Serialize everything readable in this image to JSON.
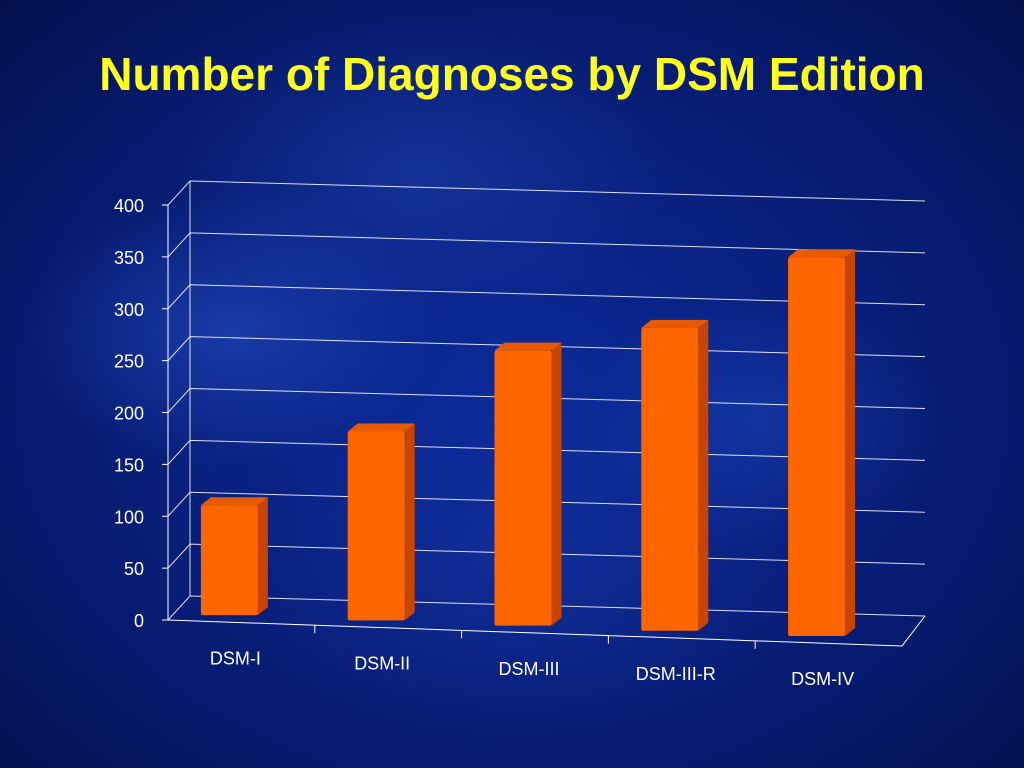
{
  "slide": {
    "title": "Number of Diagnoses by DSM Edition"
  },
  "colors": {
    "bar_front": "#ff6600",
    "bar_side": "#c94400",
    "bar_top": "#e85a00",
    "title": "#ffff1e",
    "text": "#ffffff"
  },
  "chart_data": {
    "type": "bar",
    "title": "Number of Diagnoses by DSM Edition",
    "categories": [
      "DSM-I",
      "DSM-II",
      "DSM-III",
      "DSM-III-R",
      "DSM-IV"
    ],
    "values": [
      106,
      182,
      265,
      292,
      365
    ],
    "ylim": [
      0,
      400
    ],
    "yticks": [
      0,
      50,
      100,
      150,
      200,
      250,
      300,
      350,
      400
    ],
    "grid": true,
    "legend": "none",
    "style": "3d"
  }
}
